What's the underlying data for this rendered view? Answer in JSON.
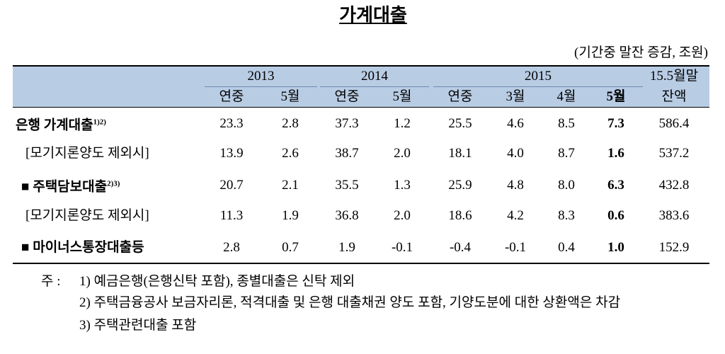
{
  "title": "가계대출",
  "unit": "(기간중 말잔 증감, 조원)",
  "table": {
    "header": {
      "years": [
        {
          "label": "2013",
          "cols": [
            "연중",
            "5월"
          ]
        },
        {
          "label": "2014",
          "cols": [
            "연중",
            "5월"
          ]
        },
        {
          "label": "2015",
          "cols": [
            "연중",
            "3월",
            "4월",
            "5월"
          ]
        }
      ],
      "balance": [
        "15.5월말",
        "잔액"
      ]
    },
    "rows": [
      {
        "label": "은행 가계대출",
        "note": "1)2)",
        "values": [
          "23.3",
          "2.8",
          "37.3",
          "1.2",
          "25.5",
          "4.6",
          "8.5",
          "7.3",
          "586.4"
        ]
      },
      {
        "label": "[모기지론양도 제외시]",
        "values": [
          "13.9",
          "2.6",
          "38.7",
          "2.0",
          "18.1",
          "4.0",
          "8.7",
          "1.6",
          "537.2"
        ]
      },
      {
        "label": "■ 주택담보대출",
        "note": "2)3)",
        "values": [
          "20.7",
          "2.1",
          "35.5",
          "1.3",
          "25.9",
          "4.8",
          "8.0",
          "6.3",
          "432.8"
        ]
      },
      {
        "label": "[모기지론양도 제외시]",
        "values": [
          "11.3",
          "1.9",
          "36.8",
          "2.0",
          "18.6",
          "4.2",
          "8.3",
          "0.6",
          "383.6"
        ]
      },
      {
        "label": "■ 마이너스통장대출등",
        "values": [
          "2.8",
          "0.7",
          "1.9",
          "-0.1",
          "-0.4",
          "-0.1",
          "0.4",
          "1.0",
          "152.9"
        ]
      }
    ]
  },
  "notes": {
    "marker": "주 :",
    "items": [
      "1) 예금은행(은행신탁 포함), 종별대출은 신탁 제외",
      "2) 주택금융공사 보금자리론, 적격대출 및 은행 대출채권 양도 포함, 기양도분에 대한 상환액은 차감",
      "3) 주택관련대출 포함"
    ]
  }
}
